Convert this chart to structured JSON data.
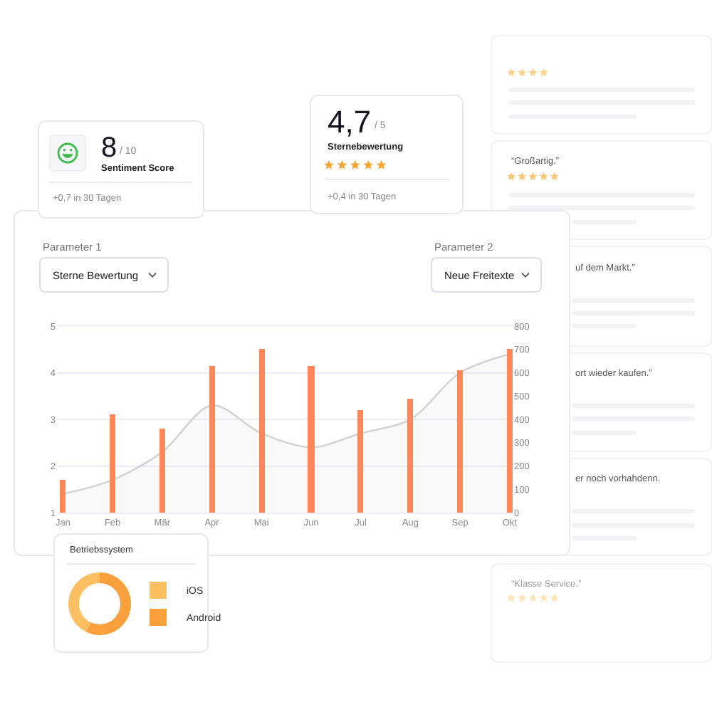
{
  "chart_data": [
    {
      "type": "other",
      "annotations": [
        "8",
        "/ 10",
        "Sentiment Score",
        "+0,7 in 30 Tagen"
      ]
    },
    {
      "type": "other",
      "annotations": [
        "4,7",
        "/ 5",
        "Sternebewertung",
        "+0,4 in 30 Tagen"
      ]
    },
    {
      "type": "other",
      "annotations": [
        "“Großartig.”",
        "uf dem Markt.”",
        "ort wieder kaufen.”",
        "er noch vorhahdenn.",
        "“Klasse Service.”"
      ]
    },
    {
      "type": "bar",
      "categories": [
        "Jan",
        "Feb",
        "Mär",
        "Apr",
        "Mai",
        "Jun",
        "Jul",
        "Aug",
        "Sep",
        "Okt"
      ],
      "series": [
        {
          "type": "area",
          "color": "#d3d3d6",
          "values": [
            1.4,
            1.7,
            2.3,
            3.3,
            2.7,
            2.4,
            2.7,
            3.0,
            4.0,
            4.4
          ]
        },
        {
          "type": "bar",
          "axis": "y2",
          "color": "#ff875a",
          "values": [
            140,
            420,
            360,
            630,
            700,
            630,
            440,
            490,
            610,
            700
          ]
        }
      ],
      "ylim": [
        1,
        5
      ],
      "yticks": [
        1,
        2,
        3,
        4,
        5
      ],
      "y2lim": [
        0,
        800
      ],
      "y2ticks": [
        0,
        100,
        200,
        300,
        400,
        500,
        600,
        700,
        800
      ],
      "grid": "y",
      "annotations": [
        "Parameter 1",
        "Sterne Bewertung",
        "Parameter 2",
        "Neue Freitexte"
      ]
    },
    {
      "type": "donut",
      "title": "Betriebssystem",
      "categories": [
        "iOS",
        "Android"
      ],
      "values": [
        43,
        57
      ],
      "colors": [
        "#fcbf62",
        "#f9a03c"
      ],
      "legend": "right"
    }
  ]
}
